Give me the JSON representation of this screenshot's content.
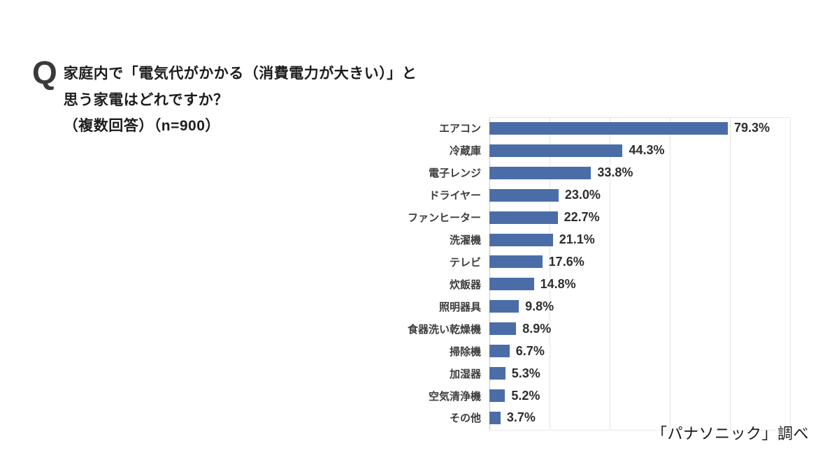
{
  "question": {
    "marker": "Q",
    "line1": "家庭内で「電気代がかかる（消費電力が大きい）」と",
    "line2": "思う家電はどれですか？",
    "line3": "（複数回答）（n=900）"
  },
  "source_note": "「パナソニック」調べ",
  "chart_data": {
    "type": "bar",
    "orientation": "horizontal",
    "title": "",
    "xlabel": "",
    "ylabel": "",
    "xlim": [
      0,
      100
    ],
    "gridline_step": 20,
    "grid": true,
    "legend": false,
    "bar_color": "#4a6da8",
    "categories": [
      "エアコン",
      "冷蔵庫",
      "電子レンジ",
      "ドライヤー",
      "ファンヒーター",
      "洗濯機",
      "テレビ",
      "炊飯器",
      "照明器具",
      "食器洗い乾燥機",
      "掃除機",
      "加湿器",
      "空気清浄機",
      "その他"
    ],
    "values": [
      79.3,
      44.3,
      33.8,
      23.0,
      22.7,
      21.1,
      17.6,
      14.8,
      9.8,
      8.9,
      6.7,
      5.3,
      5.2,
      3.7
    ],
    "value_labels": [
      "79.3%",
      "44.3%",
      "33.8%",
      "23.0%",
      "22.7%",
      "21.1%",
      "17.6%",
      "14.8%",
      "9.8%",
      "8.9%",
      "6.7%",
      "5.3%",
      "5.2%",
      "3.7%"
    ]
  }
}
